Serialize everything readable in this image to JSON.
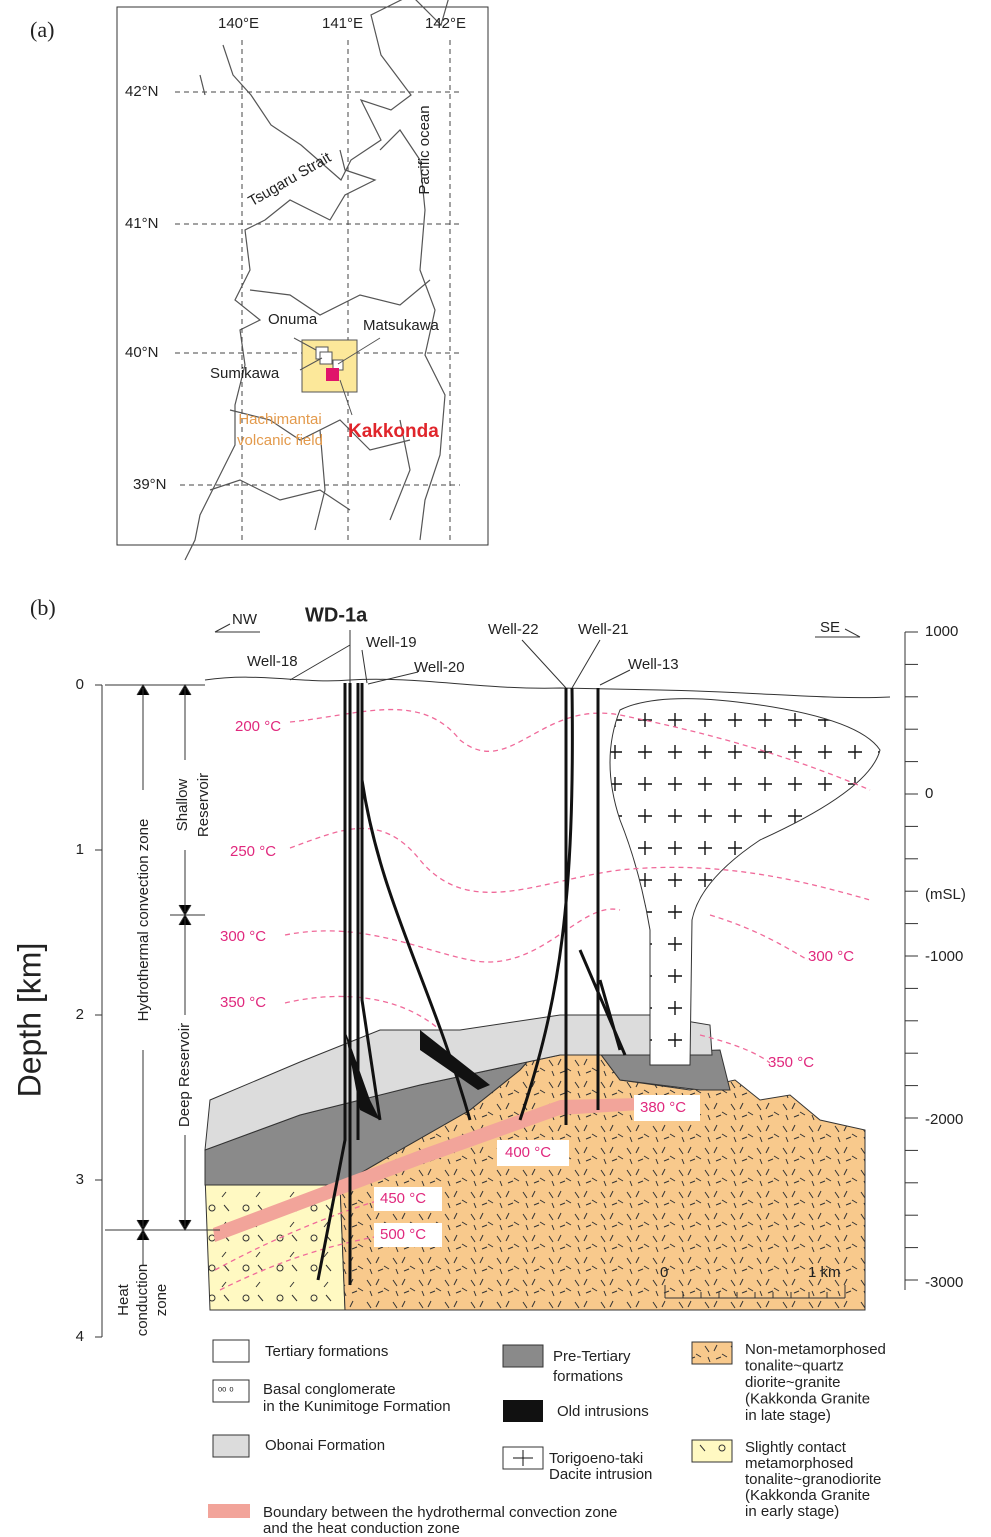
{
  "panel_a": {
    "label": "(a)",
    "longitudes": [
      "140°E",
      "141°E",
      "142°E"
    ],
    "latitudes": [
      "42°N",
      "41°N",
      "40°N",
      "39°N"
    ],
    "places": {
      "strait": "Tsugaru Strait",
      "ocean": "Pacific ocean",
      "onuma": "Onuma",
      "matsukawa": "Matsukawa",
      "sumikawa": "Sumikawa",
      "field": [
        "Hachimantai",
        "volcanic field"
      ],
      "kakkonda": "Kakkonda"
    }
  },
  "panel_b": {
    "label": "(b)",
    "directions": [
      "NW",
      "SE"
    ],
    "wells": [
      "WD-1a",
      "Well-18",
      "Well-19",
      "Well-20",
      "Well-22",
      "Well-21",
      "Well-13"
    ],
    "depth_axis": {
      "title": "Depth [km]",
      "ticks": [
        "0",
        "1",
        "2",
        "3",
        "4"
      ]
    },
    "elevation_axis": {
      "ticks": [
        "1000",
        "0",
        "(mSL)",
        "-1000",
        "-2000",
        "-3000"
      ]
    },
    "zones": {
      "convection": "Hydrothermal convection zone",
      "shallow": [
        "Shallow",
        "Reservoir"
      ],
      "deep": "Deep Reservoir",
      "conduction": [
        "Heat",
        "conduction",
        "zone"
      ]
    },
    "isotherms": [
      "200 °C",
      "250 °C",
      "300 °C",
      "350 °C",
      "300 °C",
      "350 °C",
      "380 °C",
      "400 °C",
      "450 °C",
      "500 °C"
    ],
    "scale": [
      "0",
      "1 km"
    ],
    "legend": [
      {
        "lines": [
          "Tertiary formations"
        ]
      },
      {
        "lines": [
          "Basal conglomerate",
          "in the Kunimitoge Formation"
        ]
      },
      {
        "lines": [
          "Obonai Formation"
        ]
      },
      {
        "lines": [
          "Boundary between the hydrothermal convection zone",
          "and the heat conduction zone"
        ]
      },
      {
        "lines": [
          "Pre-Tertiary",
          "formations"
        ]
      },
      {
        "lines": [
          "Old intrusions"
        ]
      },
      {
        "lines": [
          "Torigoeno-taki",
          "Dacite intrusion"
        ]
      },
      {
        "lines": [
          "Non-metamorphosed",
          "tonalite~quartz",
          "diorite~granite",
          "(Kakkonda Granite",
          "in late stage)"
        ]
      },
      {
        "lines": [
          "Slightly contact",
          "metamorphosed",
          "tonalite~granodiorite",
          "(Kakkonda Granite",
          "in early stage)"
        ]
      }
    ]
  }
}
